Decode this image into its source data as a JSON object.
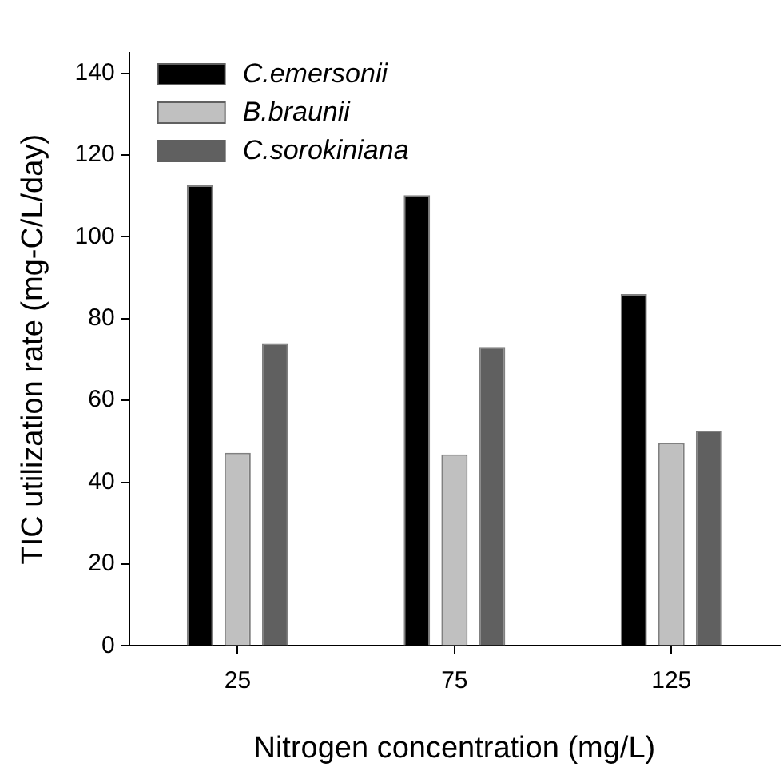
{
  "chart_data": {
    "type": "bar",
    "xlabel": "Nitrogen concentration (mg/L)",
    "ylabel": "TIC utilization rate (mg-C/L/day)",
    "categories": [
      "25",
      "75",
      "125"
    ],
    "series": [
      {
        "name": "C.emersonii",
        "color": "#000000",
        "values": [
          112.6,
          110.2,
          86.0
        ]
      },
      {
        "name": "B.braunii",
        "color": "#c0c0c0",
        "values": [
          47.2,
          46.8,
          49.6
        ]
      },
      {
        "name": "C.sorokiniana",
        "color": "#606060",
        "values": [
          74.0,
          73.1,
          52.6
        ]
      }
    ],
    "ylim": [
      0,
      145
    ],
    "yticks": [
      0,
      20,
      40,
      60,
      80,
      100,
      120,
      140
    ],
    "grid": false,
    "legend": "top left"
  }
}
